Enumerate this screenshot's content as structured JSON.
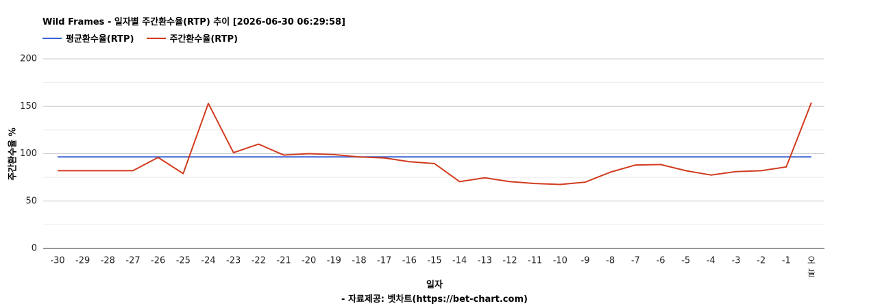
{
  "chart_data": {
    "type": "line",
    "title": "Wild Frames - 일자별 주간환수율(RTP) 추이 [2026-06-30 06:29:58]",
    "xlabel": "일자",
    "ylabel": "주간환수율 %",
    "credit": "- 자료제공: 벳차트(https://bet-chart.com)",
    "categories": [
      "-30",
      "-29",
      "-28",
      "-27",
      "-26",
      "-25",
      "-24",
      "-23",
      "-22",
      "-21",
      "-20",
      "-19",
      "-18",
      "-17",
      "-16",
      "-15",
      "-14",
      "-13",
      "-12",
      "-11",
      "-10",
      "-9",
      "-8",
      "-7",
      "-6",
      "-5",
      "-4",
      "-3",
      "-2",
      "-1",
      "오늘"
    ],
    "ylim": [
      0,
      200
    ],
    "yticks": [
      0,
      50,
      100,
      150,
      200
    ],
    "grid": true,
    "legend_position": "top-left",
    "series": [
      {
        "name": "평균환수율(RTP)",
        "color": "#3b64d6",
        "values": [
          96.5,
          96.5,
          96.5,
          96.5,
          96.5,
          96.5,
          96.5,
          96.5,
          96.5,
          96.5,
          96.5,
          96.5,
          96.5,
          96.5,
          96.5,
          96.5,
          96.5,
          96.5,
          96.5,
          96.5,
          96.5,
          96.5,
          96.5,
          96.5,
          96.5,
          96.5,
          96.5,
          96.5,
          96.5,
          96.5,
          96.5
        ]
      },
      {
        "name": "주간환수율(RTP)",
        "color": "#d13b1e",
        "values": [
          82,
          82,
          82,
          82,
          96,
          79,
          153,
          101,
          110,
          98.5,
          100,
          99,
          96.5,
          95.5,
          91.5,
          89.5,
          70.5,
          74.5,
          70.5,
          68.5,
          67.5,
          70,
          80.5,
          88,
          88.5,
          82,
          77.5,
          81,
          82,
          86,
          154
        ]
      }
    ]
  }
}
